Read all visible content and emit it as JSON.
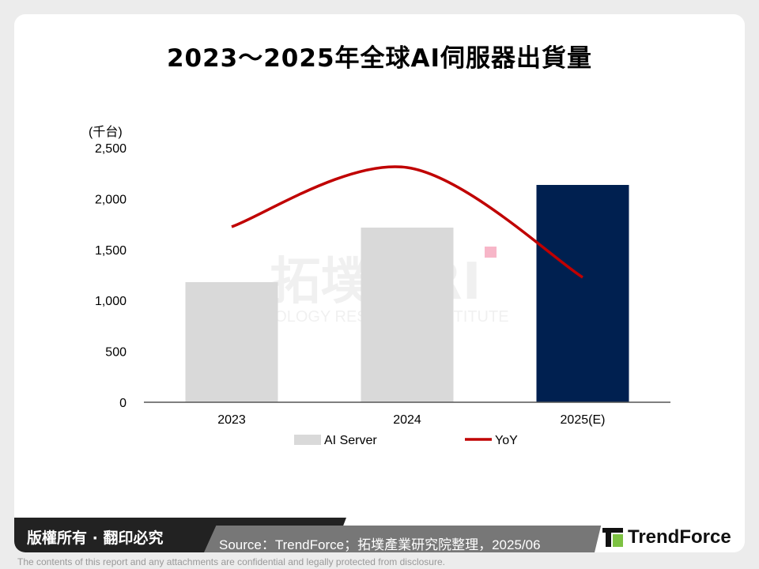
{
  "title": "2023～2025年全球AI伺服器出貨量",
  "chart_data": {
    "type": "bar",
    "title": "2023～2025年全球AI伺服器出貨量",
    "ylabel": "(千台)",
    "ylim": [
      0,
      2500
    ],
    "yticks": [
      "0",
      "500",
      "1,000",
      "1,500",
      "2,000",
      "2,500"
    ],
    "ytick_values": [
      0,
      500,
      1000,
      1500,
      2000,
      2500
    ],
    "categories": [
      "2023",
      "2024",
      "2025(E)"
    ],
    "series": [
      {
        "name": "AI Server",
        "type": "bar",
        "values": [
          1180,
          1716,
          2135
        ],
        "colors": [
          "#d9d9d9",
          "#d9d9d9",
          "#002050"
        ]
      },
      {
        "name": "YoY",
        "type": "line",
        "smooth": true,
        "values": [
          1724,
          2306,
          1227
        ],
        "color": "#c00000"
      }
    ],
    "grid": false,
    "legend": "bottom"
  },
  "watermark": {
    "cn": "拓墣",
    "en": "TOPOLOGY RESEARCH INSTITUTE"
  },
  "footer": {
    "copyright": "版權所有 · 翻印必究",
    "source": "Source：TrendForce；拓墣產業研究院整理，2025/06",
    "logo": "TrendForce",
    "disclaimer": "The contents of this report and any attachments are confidential and legally protected from disclosure."
  }
}
